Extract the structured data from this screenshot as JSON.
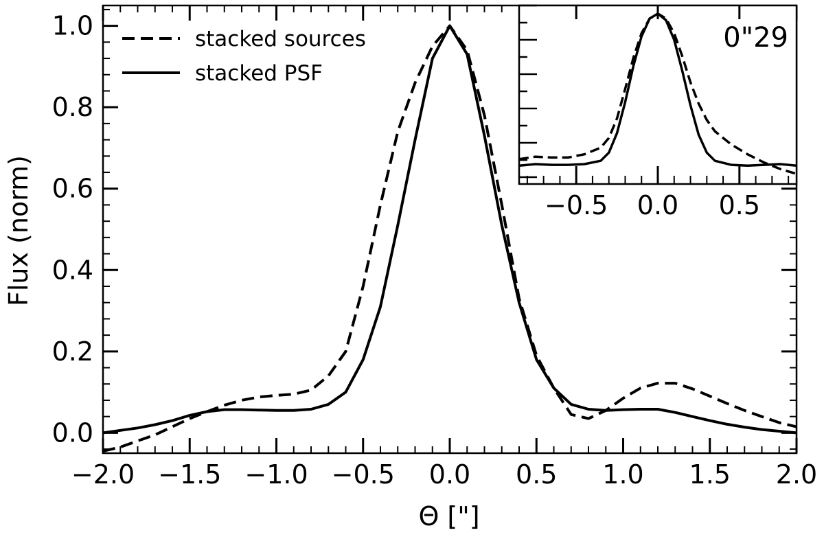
{
  "chart_data": [
    {
      "type": "line",
      "xlabel": "Θ [\"]",
      "ylabel": "Flux (norm)",
      "xlim": [
        -2.0,
        2.0
      ],
      "ylim": [
        -0.05,
        1.05
      ],
      "xticks": [
        -2.0,
        -1.5,
        -1.0,
        -0.5,
        0.0,
        0.5,
        1.0,
        1.5,
        2.0
      ],
      "xtick_labels": [
        "−2.0",
        "−1.5",
        "−1.0",
        "−0.5",
        "0.0",
        "0.5",
        "1.0",
        "1.5",
        "2.0"
      ],
      "yticks": [
        0.0,
        0.2,
        0.4,
        0.6,
        0.8,
        1.0
      ],
      "ytick_labels": [
        "0.0",
        "0.2",
        "0.4",
        "0.6",
        "0.8",
        "1.0"
      ],
      "legend_position": "top-left",
      "grid": false,
      "series": [
        {
          "name": "stacked sources",
          "style": "dashed",
          "x": [
            -2.0,
            -1.9,
            -1.8,
            -1.7,
            -1.6,
            -1.5,
            -1.4,
            -1.3,
            -1.2,
            -1.1,
            -1.0,
            -0.9,
            -0.8,
            -0.7,
            -0.6,
            -0.5,
            -0.4,
            -0.3,
            -0.2,
            -0.1,
            0.0,
            0.1,
            0.2,
            0.3,
            0.4,
            0.5,
            0.6,
            0.7,
            0.8,
            0.9,
            1.0,
            1.1,
            1.2,
            1.3,
            1.4,
            1.5,
            1.6,
            1.7,
            1.8,
            1.9,
            2.0
          ],
          "y": [
            -0.045,
            -0.035,
            -0.02,
            -0.005,
            0.015,
            0.035,
            0.052,
            0.068,
            0.08,
            0.088,
            0.092,
            0.095,
            0.105,
            0.14,
            0.2,
            0.36,
            0.56,
            0.74,
            0.86,
            0.95,
            1.0,
            0.94,
            0.78,
            0.56,
            0.33,
            0.19,
            0.11,
            0.045,
            0.035,
            0.055,
            0.085,
            0.11,
            0.122,
            0.122,
            0.108,
            0.09,
            0.072,
            0.055,
            0.04,
            0.025,
            0.015
          ]
        },
        {
          "name": "stacked PSF",
          "style": "solid",
          "x": [
            -2.0,
            -1.9,
            -1.8,
            -1.7,
            -1.6,
            -1.5,
            -1.4,
            -1.3,
            -1.2,
            -1.1,
            -1.0,
            -0.9,
            -0.8,
            -0.7,
            -0.6,
            -0.5,
            -0.4,
            -0.3,
            -0.2,
            -0.1,
            0.0,
            0.1,
            0.2,
            0.3,
            0.4,
            0.5,
            0.6,
            0.7,
            0.8,
            0.9,
            1.0,
            1.1,
            1.2,
            1.3,
            1.4,
            1.5,
            1.6,
            1.7,
            1.8,
            1.9,
            2.0
          ],
          "y": [
            0.0,
            0.006,
            0.012,
            0.02,
            0.03,
            0.043,
            0.052,
            0.057,
            0.057,
            0.056,
            0.055,
            0.055,
            0.058,
            0.07,
            0.1,
            0.18,
            0.31,
            0.51,
            0.72,
            0.92,
            1.0,
            0.93,
            0.73,
            0.51,
            0.32,
            0.18,
            0.11,
            0.07,
            0.058,
            0.055,
            0.057,
            0.058,
            0.058,
            0.05,
            0.04,
            0.03,
            0.021,
            0.014,
            0.008,
            0.004,
            0.0
          ]
        }
      ]
    },
    {
      "type": "line",
      "title": "0\"29",
      "xlim": [
        -0.85,
        0.85
      ],
      "xticks": [
        -0.5,
        0.0,
        0.5
      ],
      "xtick_labels": [
        "−0.5",
        "0.0",
        "0.5"
      ],
      "ylim": [
        0.0,
        1.05
      ],
      "ytick_labels": [],
      "series": [
        {
          "name": "stacked sources",
          "style": "dashed",
          "x": [
            -0.85,
            -0.75,
            -0.65,
            -0.55,
            -0.45,
            -0.35,
            -0.3,
            -0.25,
            -0.2,
            -0.15,
            -0.1,
            -0.05,
            0.0,
            0.05,
            0.1,
            0.15,
            0.2,
            0.25,
            0.3,
            0.35,
            0.45,
            0.55,
            0.65,
            0.75,
            0.85
          ],
          "y": [
            0.11,
            0.125,
            0.12,
            0.12,
            0.14,
            0.18,
            0.24,
            0.36,
            0.54,
            0.73,
            0.88,
            0.97,
            1.0,
            0.97,
            0.88,
            0.74,
            0.58,
            0.45,
            0.35,
            0.28,
            0.2,
            0.14,
            0.09,
            0.05,
            0.02
          ]
        },
        {
          "name": "stacked PSF",
          "style": "solid",
          "x": [
            -0.85,
            -0.75,
            -0.65,
            -0.55,
            -0.45,
            -0.35,
            -0.3,
            -0.25,
            -0.2,
            -0.15,
            -0.1,
            -0.05,
            0.0,
            0.05,
            0.1,
            0.15,
            0.2,
            0.25,
            0.3,
            0.35,
            0.45,
            0.55,
            0.65,
            0.75,
            0.85
          ],
          "y": [
            0.07,
            0.08,
            0.075,
            0.075,
            0.08,
            0.1,
            0.15,
            0.27,
            0.46,
            0.68,
            0.86,
            0.97,
            1.0,
            0.96,
            0.84,
            0.65,
            0.44,
            0.26,
            0.15,
            0.1,
            0.075,
            0.07,
            0.075,
            0.08,
            0.07
          ]
        }
      ]
    }
  ]
}
